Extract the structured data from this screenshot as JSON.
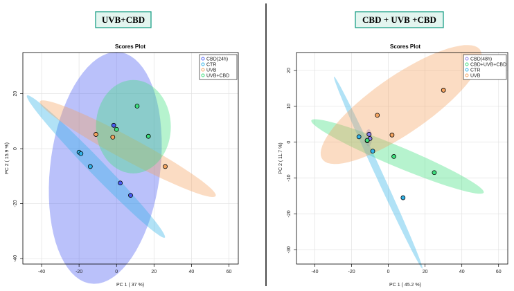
{
  "chart_data": [
    {
      "type": "scatter",
      "tag": "UVB+CBD",
      "title": "Scores Plot",
      "xlabel": "PC 1 ( 37 %)",
      "ylabel": "PC 2 ( 15.9 %)",
      "xlim": [
        -50,
        65
      ],
      "ylim": [
        -42,
        35
      ],
      "xticks": [
        -40,
        -20,
        0,
        20,
        40,
        60
      ],
      "yticks": [
        -40,
        -20,
        0,
        20
      ],
      "grid": true,
      "legend_position": "top-right",
      "series": [
        {
          "name": "CBD(24h)",
          "color": "#4a5cf2",
          "points": [
            [
              -1.5,
              8.5
            ],
            [
              2,
              -12.5
            ],
            [
              7.5,
              -17
            ]
          ],
          "ellipse": {
            "center": [
              -6,
              -7
            ],
            "semi_axes": [
              29,
              43
            ],
            "rotation_deg": -15
          }
        },
        {
          "name": "CTR",
          "color": "#33b3e8",
          "points": [
            [
              -20,
              -1.3
            ],
            [
              -19,
              -1.8
            ],
            [
              -14,
              -6.5
            ]
          ],
          "ellipse": {
            "center": [
              -11,
              -6.5
            ],
            "semi_axes": [
              45,
              3.3
            ],
            "rotation_deg": -35
          }
        },
        {
          "name": "UVB",
          "color": "#f4a460",
          "points": [
            [
              -11,
              5.2
            ],
            [
              -2,
              4.2
            ],
            [
              26,
              -6.5
            ]
          ],
          "ellipse": {
            "center": [
              6,
              0
            ],
            "semi_axes": [
              50,
              4.4
            ],
            "rotation_deg": -20
          }
        },
        {
          "name": "UVB+CBD",
          "color": "#3ee07e",
          "points": [
            [
              0,
              7
            ],
            [
              11,
              15.5
            ],
            [
              17,
              4.5
            ]
          ],
          "ellipse": {
            "center": [
              9,
              8
            ],
            "semi_axes": [
              20,
              17
            ],
            "rotation_deg": 0
          }
        }
      ]
    },
    {
      "type": "scatter",
      "tag": "CBD + UVB +CBD",
      "title": "Scores Plot",
      "xlabel": "PC 1 ( 45.2 %)",
      "ylabel": "PC 2 ( 11.7 %)",
      "xlim": [
        -50,
        65
      ],
      "ylim": [
        -34,
        25
      ],
      "xticks": [
        -40,
        -20,
        0,
        20,
        40,
        60
      ],
      "yticks": [
        -30,
        -20,
        -10,
        0,
        10,
        20
      ],
      "grid": true,
      "legend_position": "top-right",
      "series": [
        {
          "name": "CBD(48h)",
          "color": "#8a7fe8",
          "points": [
            [
              -10.5,
              2.2
            ],
            [
              -10,
              1
            ],
            [
              -11.5,
              0.4
            ]
          ],
          "ellipse": {
            "center": [
              -10.7,
              1.2
            ],
            "semi_axes": [
              1.8,
              2.4
            ],
            "rotation_deg": 0
          }
        },
        {
          "name": "CBD+UVB+CBD",
          "color": "#3ee07e",
          "points": [
            [
              -11.5,
              0.5
            ],
            [
              3,
              -4
            ],
            [
              25,
              -8.5
            ]
          ],
          "ellipse": {
            "center": [
              5,
              -4
            ],
            "semi_axes": [
              48,
              3
            ],
            "rotation_deg": -12
          }
        },
        {
          "name": "CTR",
          "color": "#33b3e8",
          "points": [
            [
              -16,
              1.5
            ],
            [
              -8.5,
              -2.5
            ],
            [
              8,
              -15.5
            ]
          ],
          "ellipse": {
            "center": [
              -5.5,
              -8.5
            ],
            "semi_axes": [
              36,
              1.6
            ],
            "rotation_deg": -48
          }
        },
        {
          "name": "UVB",
          "color": "#f4a460",
          "points": [
            [
              -6,
              7.5
            ],
            [
              2,
              2
            ],
            [
              30,
              14.5
            ]
          ],
          "ellipse": {
            "center": [
              7,
              10.5
            ],
            "semi_axes": [
              46,
              9
            ],
            "rotation_deg": 18
          }
        }
      ]
    }
  ]
}
